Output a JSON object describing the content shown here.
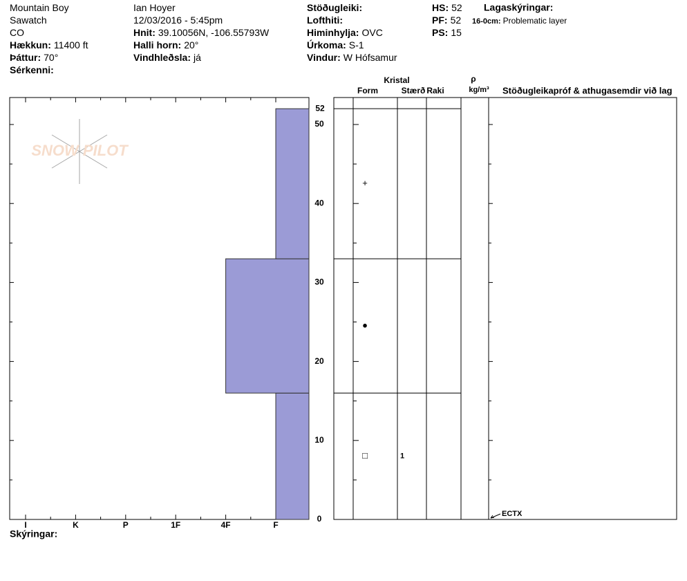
{
  "header": {
    "columns": [
      [
        {
          "value": "Mountain Boy"
        },
        {
          "value": "Sawatch"
        },
        {
          "value": "CO"
        },
        {
          "label": "Hækkun:",
          "value": "11400 ft"
        },
        {
          "label": "Þáttur:",
          "value": "70°"
        },
        {
          "label": "Sérkenni:"
        }
      ],
      [
        {
          "value": "Ian Hoyer"
        },
        {
          "value": "12/03/2016 - 5:45pm"
        },
        {
          "label": "Hnit:",
          "value": "39.10056N, -106.55793W"
        },
        {
          "label": "Halli horn:",
          "value": "20°"
        },
        {
          "label": "Vindhleðsla:",
          "value": "já"
        }
      ],
      [
        {
          "label": "Stöðugleiki:"
        },
        {
          "label": "Lofthiti:"
        },
        {
          "label": "Himinhylja:",
          "value": "OVC"
        },
        {
          "label": "Úrkoma:",
          "value": "S-1"
        },
        {
          "label": "Vindur:",
          "value": "W Hófsamur"
        }
      ],
      [
        {
          "label": "HS:",
          "value": "52"
        },
        {
          "label": "PF:",
          "value": "52"
        },
        {
          "label": "PS:",
          "value": "15"
        }
      ]
    ],
    "legend_title": "Lagaskýringar:",
    "notes": [
      {
        "label": "16-0cm:",
        "value": "Problematic layer"
      }
    ]
  },
  "watermark": "SNOW PILOT",
  "profile": {
    "hardness_scale": [
      "I",
      "K",
      "P",
      "1F",
      "4F",
      "F"
    ],
    "yticks": [
      0,
      10,
      20,
      30,
      40,
      50,
      52
    ],
    "color": "#9b9bd6",
    "layers": [
      {
        "bottom": 0,
        "top": 16,
        "hardness": "F",
        "grain_form": "□",
        "grain_size": "1"
      },
      {
        "bottom": 16,
        "top": 33,
        "hardness": "4F",
        "grain_form": "●"
      },
      {
        "bottom": 33,
        "top": 52,
        "hardness": "F",
        "grain_form": "+"
      }
    ],
    "tests": [
      {
        "height": 0.7,
        "label": "ECTX"
      }
    ]
  },
  "table_headers": {
    "crystal": "Kristal",
    "form": "Form",
    "size": "Stærð",
    "moisture": "Raki",
    "rho": "ρ",
    "density_unit": "kg/m³",
    "comments": "Stöðugleikapróf & athugasemdir við lag"
  },
  "footer": "Skýringar:"
}
